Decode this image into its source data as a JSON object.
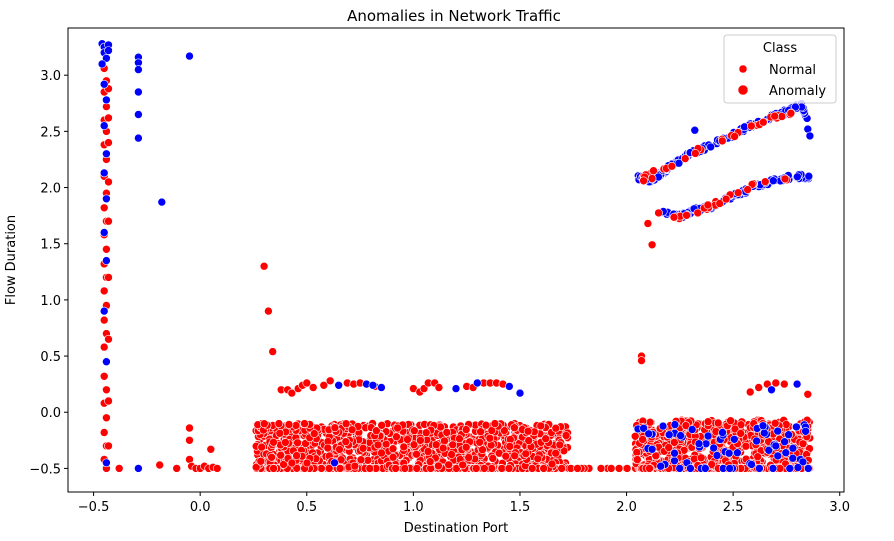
{
  "chart_data": {
    "type": "scatter",
    "title": "Anomalies in Network Traffic",
    "xlabel": "Destination Port",
    "ylabel": "Flow Duration",
    "xlim": [
      -0.62,
      3.02
    ],
    "ylim": [
      -0.71,
      3.42
    ],
    "xticks": [
      -0.5,
      0.0,
      0.5,
      1.0,
      1.5,
      2.0,
      2.5,
      3.0
    ],
    "xtick_labels": [
      "−0.5",
      "0.0",
      "0.5",
      "1.0",
      "1.5",
      "2.0",
      "2.5",
      "3.0"
    ],
    "yticks": [
      -0.5,
      0.0,
      0.5,
      1.0,
      1.5,
      2.0,
      2.5,
      3.0
    ],
    "ytick_labels": [
      "−0.5",
      "0.0",
      "0.5",
      "1.0",
      "1.5",
      "2.0",
      "2.5",
      "3.0"
    ],
    "grid": false,
    "legend": {
      "title": "Class",
      "placement": "top-right",
      "entries": [
        {
          "label": "Normal",
          "color": "#ff0000"
        },
        {
          "label": "Anomaly",
          "color": "#ff0000"
        }
      ]
    },
    "series": [
      {
        "color": "#ff0000",
        "points": [
          [
            -0.45,
            3.06
          ],
          [
            -0.44,
            2.95
          ],
          [
            -0.45,
            2.85
          ],
          [
            -0.44,
            2.72
          ],
          [
            -0.45,
            2.6
          ],
          [
            -0.44,
            2.5
          ],
          [
            -0.45,
            2.38
          ],
          [
            -0.44,
            2.25
          ],
          [
            -0.45,
            2.1
          ],
          [
            -0.44,
            1.95
          ],
          [
            -0.45,
            1.82
          ],
          [
            -0.44,
            1.7
          ],
          [
            -0.45,
            1.58
          ],
          [
            -0.44,
            1.45
          ],
          [
            -0.45,
            1.32
          ],
          [
            -0.44,
            1.2
          ],
          [
            -0.45,
            1.08
          ],
          [
            -0.44,
            0.95
          ],
          [
            -0.45,
            0.82
          ],
          [
            -0.44,
            0.7
          ],
          [
            -0.45,
            0.58
          ],
          [
            -0.44,
            0.45
          ],
          [
            -0.45,
            0.32
          ],
          [
            -0.44,
            0.2
          ],
          [
            -0.45,
            0.08
          ],
          [
            -0.44,
            -0.05
          ],
          [
            -0.45,
            -0.18
          ],
          [
            -0.44,
            -0.3
          ],
          [
            -0.45,
            -0.42
          ],
          [
            -0.44,
            -0.5
          ],
          [
            -0.43,
            2.88
          ],
          [
            -0.43,
            2.62
          ],
          [
            -0.43,
            2.4
          ],
          [
            -0.43,
            2.05
          ],
          [
            -0.43,
            1.7
          ],
          [
            -0.43,
            1.2
          ],
          [
            -0.43,
            0.65
          ],
          [
            -0.43,
            0.1
          ],
          [
            -0.43,
            -0.3
          ],
          [
            -0.38,
            -0.5
          ],
          [
            -0.19,
            -0.47
          ],
          [
            -0.11,
            -0.5
          ],
          [
            -0.05,
            -0.14
          ],
          [
            -0.05,
            -0.25
          ],
          [
            -0.05,
            -0.42
          ],
          [
            -0.04,
            -0.48
          ],
          [
            -0.02,
            -0.5
          ],
          [
            0.0,
            -0.5
          ],
          [
            0.02,
            -0.48
          ],
          [
            0.04,
            -0.5
          ],
          [
            0.05,
            -0.33
          ],
          [
            0.06,
            -0.49
          ],
          [
            0.08,
            -0.5
          ],
          [
            0.3,
            1.3
          ],
          [
            0.32,
            0.9
          ],
          [
            0.34,
            0.54
          ],
          [
            0.38,
            0.2
          ],
          [
            0.41,
            0.2
          ],
          [
            0.43,
            0.17
          ],
          [
            0.46,
            0.21
          ],
          [
            0.48,
            0.24
          ],
          [
            0.5,
            0.26
          ],
          [
            0.53,
            0.22
          ],
          [
            0.58,
            0.24
          ],
          [
            0.61,
            0.28
          ],
          [
            0.65,
            0.24
          ],
          [
            0.69,
            0.26
          ],
          [
            0.72,
            0.25
          ],
          [
            0.75,
            0.26
          ],
          [
            0.82,
            0.23
          ],
          [
            1.0,
            0.21
          ],
          [
            1.03,
            0.18
          ],
          [
            1.05,
            0.21
          ],
          [
            1.07,
            0.26
          ],
          [
            1.1,
            0.26
          ],
          [
            1.12,
            0.22
          ],
          [
            1.25,
            0.23
          ],
          [
            1.28,
            0.22
          ],
          [
            1.33,
            0.26
          ],
          [
            1.36,
            0.26
          ],
          [
            1.39,
            0.26
          ],
          [
            1.42,
            0.25
          ],
          [
            2.07,
            0.5
          ],
          [
            2.07,
            0.46
          ],
          [
            2.1,
            1.68
          ],
          [
            2.12,
            1.49
          ],
          [
            2.08,
            2.06
          ],
          [
            2.12,
            2.08
          ],
          [
            2.58,
            0.18
          ],
          [
            2.62,
            0.22
          ],
          [
            2.66,
            0.25
          ],
          [
            2.7,
            0.26
          ],
          [
            2.74,
            0.25
          ],
          [
            2.85,
            0.16
          ]
        ]
      },
      {
        "color": "#0000ff",
        "points": [
          [
            -0.46,
            3.28
          ],
          [
            -0.45,
            3.25
          ],
          [
            -0.43,
            3.27
          ],
          [
            -0.45,
            3.2
          ],
          [
            -0.44,
            3.15
          ],
          [
            -0.46,
            3.1
          ],
          [
            -0.43,
            3.22
          ],
          [
            -0.45,
            2.92
          ],
          [
            -0.44,
            2.78
          ],
          [
            -0.45,
            2.55
          ],
          [
            -0.44,
            2.3
          ],
          [
            -0.45,
            2.13
          ],
          [
            -0.44,
            1.9
          ],
          [
            -0.45,
            1.6
          ],
          [
            -0.44,
            1.35
          ],
          [
            -0.45,
            0.9
          ],
          [
            -0.44,
            0.45
          ],
          [
            -0.44,
            -0.45
          ],
          [
            -0.29,
            3.16
          ],
          [
            -0.29,
            3.11
          ],
          [
            -0.29,
            3.05
          ],
          [
            -0.29,
            2.85
          ],
          [
            -0.29,
            2.65
          ],
          [
            -0.29,
            2.44
          ],
          [
            -0.29,
            -0.5
          ],
          [
            -0.18,
            1.87
          ],
          [
            -0.05,
            3.17
          ],
          [
            0.63,
            -0.45
          ],
          [
            0.65,
            0.24
          ],
          [
            0.78,
            0.25
          ],
          [
            0.81,
            0.24
          ],
          [
            0.85,
            0.22
          ],
          [
            1.2,
            0.21
          ],
          [
            1.3,
            0.26
          ],
          [
            1.45,
            0.23
          ],
          [
            1.5,
            0.17
          ],
          [
            2.32,
            2.51
          ],
          [
            2.34,
            -0.28
          ],
          [
            2.68,
            0.2
          ],
          [
            2.76,
            -0.2
          ],
          [
            2.8,
            0.25
          ],
          [
            2.84,
            -0.17
          ],
          [
            2.85,
            2.52
          ],
          [
            2.86,
            2.46
          ],
          [
            2.12,
            -0.33
          ],
          [
            2.16,
            -0.48
          ],
          [
            2.2,
            -0.2
          ],
          [
            2.45,
            -0.18
          ],
          [
            2.52,
            -0.36
          ],
          [
            2.64,
            -0.12
          ],
          [
            2.7,
            -0.3
          ]
        ]
      }
    ],
    "bands": [
      {
        "color": "#ff0000",
        "x": [
          0.26,
          1.73
        ],
        "y": [
          -0.5,
          -0.1
        ],
        "count": 1300
      },
      {
        "color": "#ff0000",
        "x": [
          2.04,
          2.86
        ],
        "y": [
          -0.5,
          -0.07
        ],
        "count": 800
      },
      {
        "color": "#0000ff",
        "x": [
          2.05,
          2.86
        ],
        "y": [
          -0.5,
          -0.1
        ],
        "count": 60
      },
      {
        "color": "#ff0000",
        "x": [
          1.73,
          2.04
        ],
        "y": [
          -0.5,
          -0.5
        ],
        "count": 14
      }
    ],
    "curves": [
      {
        "color": "#0000ff",
        "points": [
          [
            2.05,
            2.09
          ],
          [
            2.1,
            2.06
          ],
          [
            2.15,
            2.1
          ],
          [
            2.2,
            2.18
          ],
          [
            2.3,
            2.3
          ],
          [
            2.4,
            2.38
          ],
          [
            2.5,
            2.47
          ],
          [
            2.6,
            2.57
          ],
          [
            2.7,
            2.64
          ],
          [
            2.78,
            2.7
          ],
          [
            2.82,
            2.74
          ],
          [
            2.85,
            2.6
          ]
        ],
        "count": 140
      },
      {
        "color": "#0000ff",
        "points": [
          [
            2.15,
            1.78
          ],
          [
            2.25,
            1.74
          ],
          [
            2.32,
            1.8
          ],
          [
            2.4,
            1.83
          ],
          [
            2.5,
            1.93
          ],
          [
            2.6,
            2.0
          ],
          [
            2.7,
            2.07
          ],
          [
            2.8,
            2.1
          ],
          [
            2.86,
            2.09
          ]
        ],
        "count": 110
      },
      {
        "color": "#ff0000",
        "points": [
          [
            2.05,
            2.09
          ],
          [
            2.2,
            2.17
          ],
          [
            2.3,
            2.3
          ],
          [
            2.4,
            2.38
          ],
          [
            2.5,
            2.46
          ],
          [
            2.6,
            2.56
          ],
          [
            2.7,
            2.63
          ],
          [
            2.78,
            2.66
          ]
        ],
        "count": 30
      },
      {
        "color": "#ff0000",
        "points": [
          [
            2.15,
            1.77
          ],
          [
            2.25,
            1.73
          ],
          [
            2.4,
            1.84
          ],
          [
            2.5,
            1.94
          ],
          [
            2.6,
            2.03
          ],
          [
            2.7,
            2.07
          ],
          [
            2.8,
            2.09
          ]
        ],
        "count": 26
      }
    ]
  }
}
